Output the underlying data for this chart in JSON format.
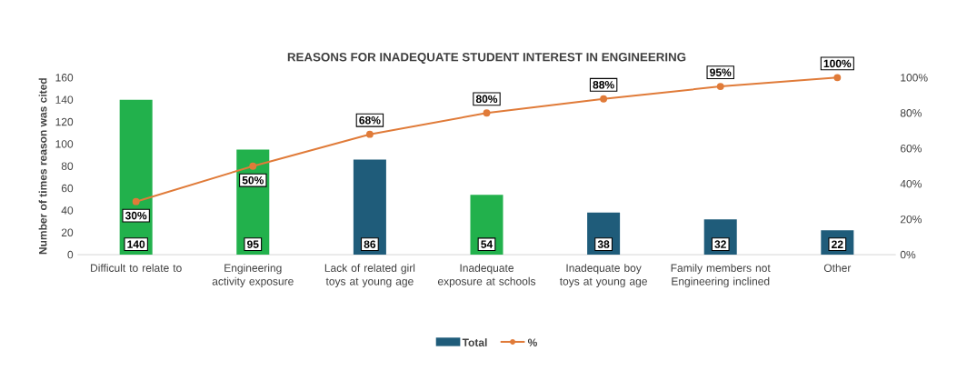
{
  "chart_data": {
    "type": "bar",
    "title": "REASONS FOR INADEQUATE STUDENT INTEREST IN ENGINEERING",
    "ylabel": "Number of times reason was cited",
    "categories": [
      "Difficult to relate to",
      "Engineering activity exposure",
      "Lack of related girl toys at young age",
      "Inadequate exposure at schools",
      "Inadequate boy toys at young age",
      "Family members not Engineering inclined",
      "Other"
    ],
    "series": [
      {
        "name": "Total",
        "color": "#1f5c7a",
        "colors": [
          "#22b14c",
          "#22b14c",
          "#1f5c7a",
          "#22b14c",
          "#1f5c7a",
          "#1f5c7a",
          "#1f5c7a"
        ],
        "values": [
          140,
          95,
          86,
          54,
          38,
          32,
          22
        ],
        "value_labels": [
          "140",
          "95",
          "86",
          "54",
          "38",
          "32",
          "22"
        ]
      },
      {
        "name": "%",
        "type": "line",
        "axis": "y2",
        "color": "#e07b39",
        "values": [
          30,
          50,
          68,
          80,
          88,
          95,
          100
        ],
        "value_labels": [
          "30%",
          "50%",
          "68%",
          "80%",
          "88%",
          "95%",
          "100%"
        ]
      }
    ],
    "ylim": [
      0,
      160
    ],
    "yticks": [
      0,
      20,
      40,
      60,
      80,
      100,
      120,
      140,
      160
    ],
    "y2lim": [
      0,
      100
    ],
    "y2ticks": [
      {
        "value": 0,
        "label": "0%"
      },
      {
        "value": 20,
        "label": "20%"
      },
      {
        "value": 40,
        "label": "40%"
      },
      {
        "value": 60,
        "label": "60%"
      },
      {
        "value": 80,
        "label": "80%"
      },
      {
        "value": 100,
        "label": "100%"
      }
    ],
    "legend": "bottom",
    "marker": "circle",
    "line_style": "solid"
  }
}
